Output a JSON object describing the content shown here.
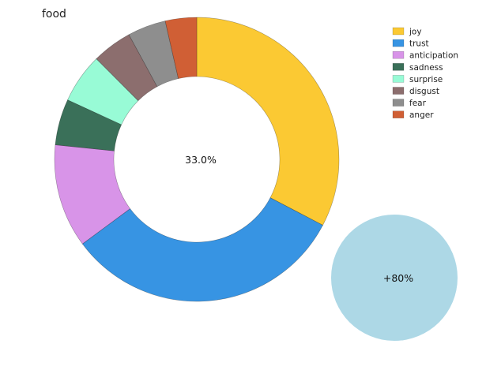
{
  "chart_data": {
    "type": "pie",
    "variant": "donut",
    "title": "food",
    "center_label": "33.0%",
    "legend_position": "top-right",
    "start": "12 o'clock",
    "direction": "clockwise",
    "slices": [
      {
        "label": "joy",
        "percent": 33.0,
        "color": "#fbc933"
      },
      {
        "label": "trust",
        "percent": 32.5,
        "color": "#3794e3"
      },
      {
        "label": "anticipation",
        "percent": 11.9,
        "color": "#d894e8"
      },
      {
        "label": "sadness",
        "percent": 5.3,
        "color": "#3a7059"
      },
      {
        "label": "surprise",
        "percent": 5.7,
        "color": "#98fbd6"
      },
      {
        "label": "disgust",
        "percent": 4.6,
        "color": "#8c6e6e"
      },
      {
        "label": "fear",
        "percent": 4.4,
        "color": "#8e8e8e"
      },
      {
        "label": "anger",
        "percent": 3.6,
        "color": "#d05f35"
      }
    ],
    "badge": {
      "label": "+80%",
      "color": "#add8e6"
    }
  }
}
